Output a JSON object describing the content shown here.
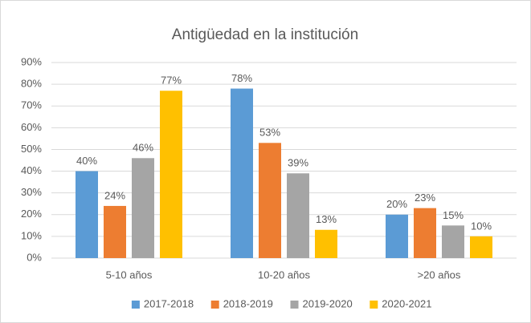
{
  "chart_data": {
    "type": "bar",
    "title": "Antigüedad en la institución",
    "categories": [
      "5-10 años",
      "10-20 años",
      ">20 años"
    ],
    "series": [
      {
        "name": "2017-2018",
        "color": "#5b9bd5",
        "values": [
          40,
          78,
          20
        ],
        "value_labels": [
          "40%",
          "78%",
          "20%"
        ]
      },
      {
        "name": "2018-2019",
        "color": "#ed7d31",
        "values": [
          24,
          53,
          23
        ],
        "value_labels": [
          "24%",
          "53%",
          "23%"
        ]
      },
      {
        "name": "2019-2020",
        "color": "#a5a5a5",
        "values": [
          46,
          39,
          15
        ],
        "value_labels": [
          "46%",
          "39%",
          "15%"
        ]
      },
      {
        "name": "2020-2021",
        "color": "#ffc000",
        "values": [
          77,
          13,
          10
        ],
        "value_labels": [
          "77%",
          "13%",
          "10%"
        ]
      }
    ],
    "ylim": [
      0,
      90
    ],
    "yticks": [
      {
        "value": 0,
        "label": "0%"
      },
      {
        "value": 10,
        "label": "10%"
      },
      {
        "value": 20,
        "label": "20%"
      },
      {
        "value": 30,
        "label": "30%"
      },
      {
        "value": 40,
        "label": "40%"
      },
      {
        "value": 50,
        "label": "50%"
      },
      {
        "value": 60,
        "label": "60%"
      },
      {
        "value": 70,
        "label": "70%"
      },
      {
        "value": 80,
        "label": "80%"
      },
      {
        "value": 90,
        "label": "90%"
      }
    ],
    "grid": true,
    "legend": "bottom"
  }
}
